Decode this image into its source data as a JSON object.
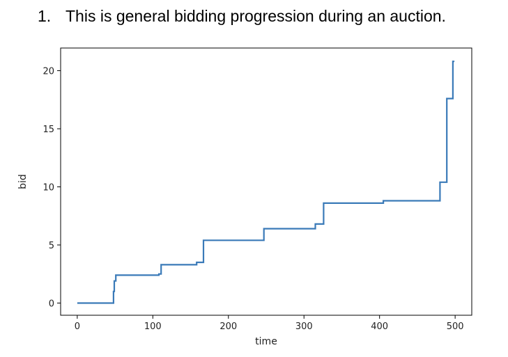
{
  "caption": {
    "number": "1.",
    "text": "This is general bidding progression during an auction."
  },
  "chart_data": {
    "type": "line",
    "title": "",
    "xlabel": "time",
    "ylabel": "bid",
    "xlim": [
      -22,
      522
    ],
    "ylim": [
      -1.05,
      21.95
    ],
    "xticks": [
      0,
      100,
      200,
      300,
      400,
      500
    ],
    "xtick_labels": [
      "0",
      "100",
      "200",
      "300",
      "400",
      "500"
    ],
    "yticks": [
      0,
      5,
      10,
      15,
      20
    ],
    "ytick_labels": [
      "0",
      "5",
      "10",
      "15",
      "20"
    ],
    "grid": false,
    "line_color": "#3a7ab8",
    "series": [
      {
        "x": [
          0,
          48,
          48,
          49,
          49,
          51,
          51,
          108,
          108,
          111,
          111,
          158,
          158,
          167,
          167,
          247,
          247,
          315,
          315,
          326,
          326,
          405,
          405,
          480,
          480,
          489,
          489,
          491,
          491,
          497,
          497,
          499
        ],
        "y": [
          0,
          0,
          1.0,
          1.0,
          1.9,
          1.9,
          2.4,
          2.4,
          2.5,
          2.5,
          3.3,
          3.3,
          3.5,
          3.5,
          5.4,
          5.4,
          6.4,
          6.4,
          6.8,
          6.8,
          8.6,
          8.6,
          8.8,
          8.8,
          10.4,
          10.4,
          17.6,
          17.6,
          17.6,
          17.6,
          20.8,
          20.8
        ]
      }
    ]
  }
}
